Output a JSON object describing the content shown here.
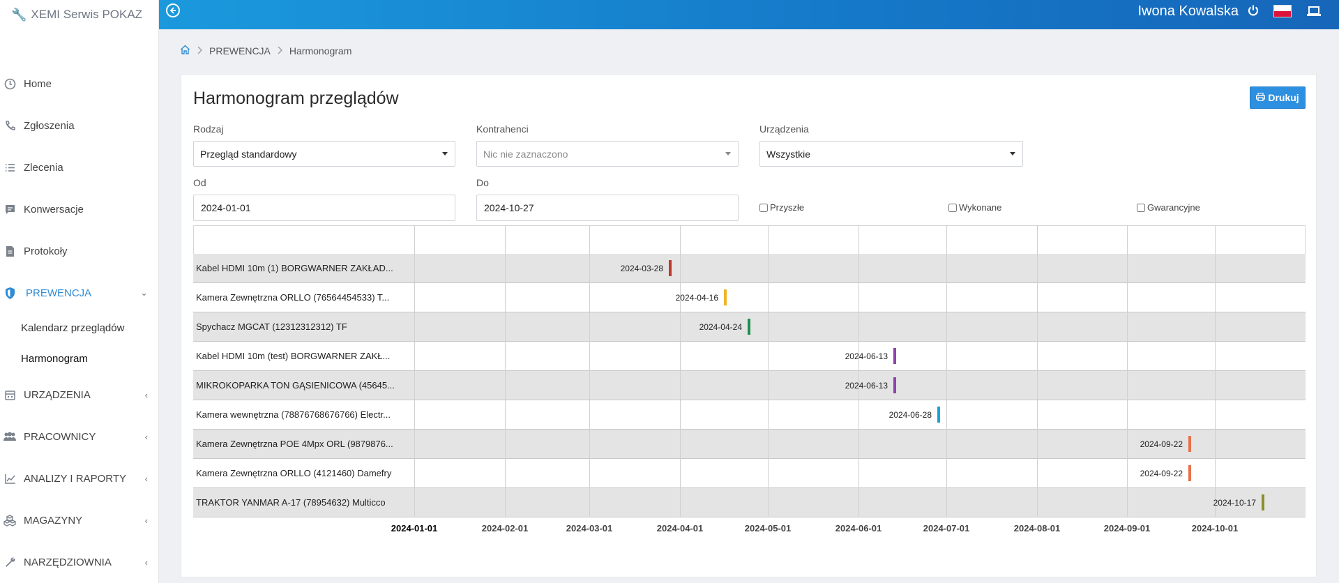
{
  "app": {
    "brand": "XEMI Serwis POKAZ",
    "user_name": "Iwona Kowalska"
  },
  "sidebar": {
    "items": [
      {
        "label": "Home",
        "icon": "home-icon"
      },
      {
        "label": "Zgłoszenia",
        "icon": "phone-icon"
      },
      {
        "label": "Zlecenia",
        "icon": "list-icon"
      },
      {
        "label": "Konwersacje",
        "icon": "chat-icon"
      },
      {
        "label": "Protokoły",
        "icon": "document-icon"
      },
      {
        "label": "PREWENCJA",
        "icon": "shield-icon"
      },
      {
        "label": "URZĄDZENIA",
        "icon": "device-icon"
      },
      {
        "label": "PRACOWNICY",
        "icon": "users-icon"
      },
      {
        "label": "ANALIZY I RAPORTY",
        "icon": "chart-icon"
      },
      {
        "label": "MAGAZYNY",
        "icon": "boxes-icon"
      },
      {
        "label": "NARZĘDZIOWNIA",
        "icon": "wrench-icon"
      }
    ],
    "subitems": [
      {
        "label": "Kalendarz przeglądów"
      },
      {
        "label": "Harmonogram"
      }
    ]
  },
  "breadcrumb": {
    "section": "PREWENCJA",
    "page": "Harmonogram"
  },
  "main": {
    "title": "Harmonogram przeglądów",
    "print_label": "Drukuj",
    "filters": {
      "rodzaj_label": "Rodzaj",
      "rodzaj_value": "Przegląd standardowy",
      "kontrahenci_label": "Kontrahenci",
      "kontrahenci_placeholder": "Nic nie zaznaczono",
      "urzadzenia_label": "Urządzenia",
      "urzadzenia_value": "Wszystkie",
      "od_label": "Od",
      "od_value": "2024-01-01",
      "do_label": "Do",
      "do_value": "2024-10-27",
      "checkboxes": [
        "Przyszłe",
        "Wykonane",
        "Gwarancyjne"
      ]
    }
  },
  "schedule": {
    "axis_ticks": [
      "2024-01-01",
      "2024-02-01",
      "2024-03-01",
      "2024-04-01",
      "2024-05-01",
      "2024-06-01",
      "2024-07-01",
      "2024-08-01",
      "2024-09-01",
      "2024-10-01"
    ],
    "rows": [
      {
        "label": "Kabel HDMI 10m (1) BORGWARNER ZAKŁAD...",
        "date": "2024-03-28",
        "color": "#c0392b"
      },
      {
        "label": "Kamera Zewnętrzna ORLLO (76564454533) T...",
        "date": "2024-04-16",
        "color": "#f0b429"
      },
      {
        "label": "Spychacz MGCAT (12312312312) TF",
        "date": "2024-04-24",
        "color": "#1e8f4e"
      },
      {
        "label": "Kabel HDMI 10m (test) BORGWARNER ZAKŁ...",
        "date": "2024-06-13",
        "color": "#8e44ad"
      },
      {
        "label": "MIKROKOPARKA TON GĄSIENICOWA (45645...",
        "date": "2024-06-13",
        "color": "#8e44ad"
      },
      {
        "label": "Kamera wewnętrzna (78876768676766) Electr...",
        "date": "2024-06-28",
        "color": "#1aa3d9"
      },
      {
        "label": "Kamera Zewnętrzna POE 4Mpx ORL (9879876...",
        "date": "2024-09-22",
        "color": "#e8704a"
      },
      {
        "label": "Kamera Zewnętrzna ORLLO (4121460) Damefry",
        "date": "2024-09-22",
        "color": "#e8704a"
      },
      {
        "label": "TRAKTOR YANMAR A-17 (78954632) Multicco",
        "date": "2024-10-17",
        "color": "#8d8d2e"
      }
    ]
  }
}
